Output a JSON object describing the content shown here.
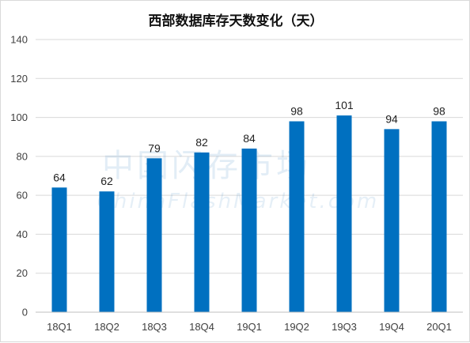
{
  "chart_data": {
    "type": "bar",
    "title": "西部数据库存天数变化（天）",
    "categories": [
      "18Q1",
      "18Q2",
      "18Q3",
      "18Q4",
      "19Q1",
      "19Q2",
      "19Q3",
      "19Q4",
      "20Q1"
    ],
    "values": [
      64,
      62,
      79,
      82,
      84,
      98,
      101,
      94,
      98
    ],
    "ylim": [
      0,
      140
    ],
    "yticks": [
      0,
      20,
      40,
      60,
      80,
      100,
      120,
      140
    ],
    "grid": true,
    "legend": "none",
    "data_labels": true,
    "bar_color": "#0070c0"
  },
  "watermark": {
    "cn": "中国闪存市场",
    "en": "ChinaFlashMarket.com"
  }
}
